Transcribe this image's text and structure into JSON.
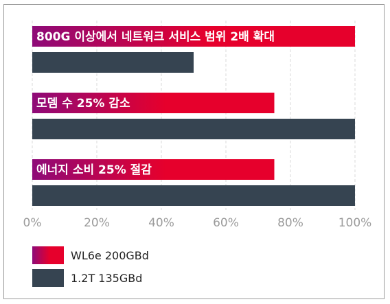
{
  "chart_data": {
    "type": "bar",
    "orientation": "horizontal",
    "categories": [
      "800G 이상에서 네트워크 서비스 범위 2배 확대",
      "모뎀 수 25% 감소",
      "에너지 소비 25% 절감"
    ],
    "series": [
      {
        "name": "WL6e 200GBd",
        "values": [
          100,
          75,
          75
        ],
        "color_start": "#8e0a78",
        "color_end": "#e6002c"
      },
      {
        "name": "1.2T 135GBd",
        "values": [
          50,
          100,
          100
        ],
        "color": "#364451"
      }
    ],
    "xlim": [
      0,
      100
    ],
    "xticks": [
      "0%",
      "20%",
      "40%",
      "60%",
      "80%",
      "100%"
    ],
    "grid": true,
    "legend_position": "bottom-left",
    "title": "",
    "xlabel": "",
    "ylabel": ""
  }
}
